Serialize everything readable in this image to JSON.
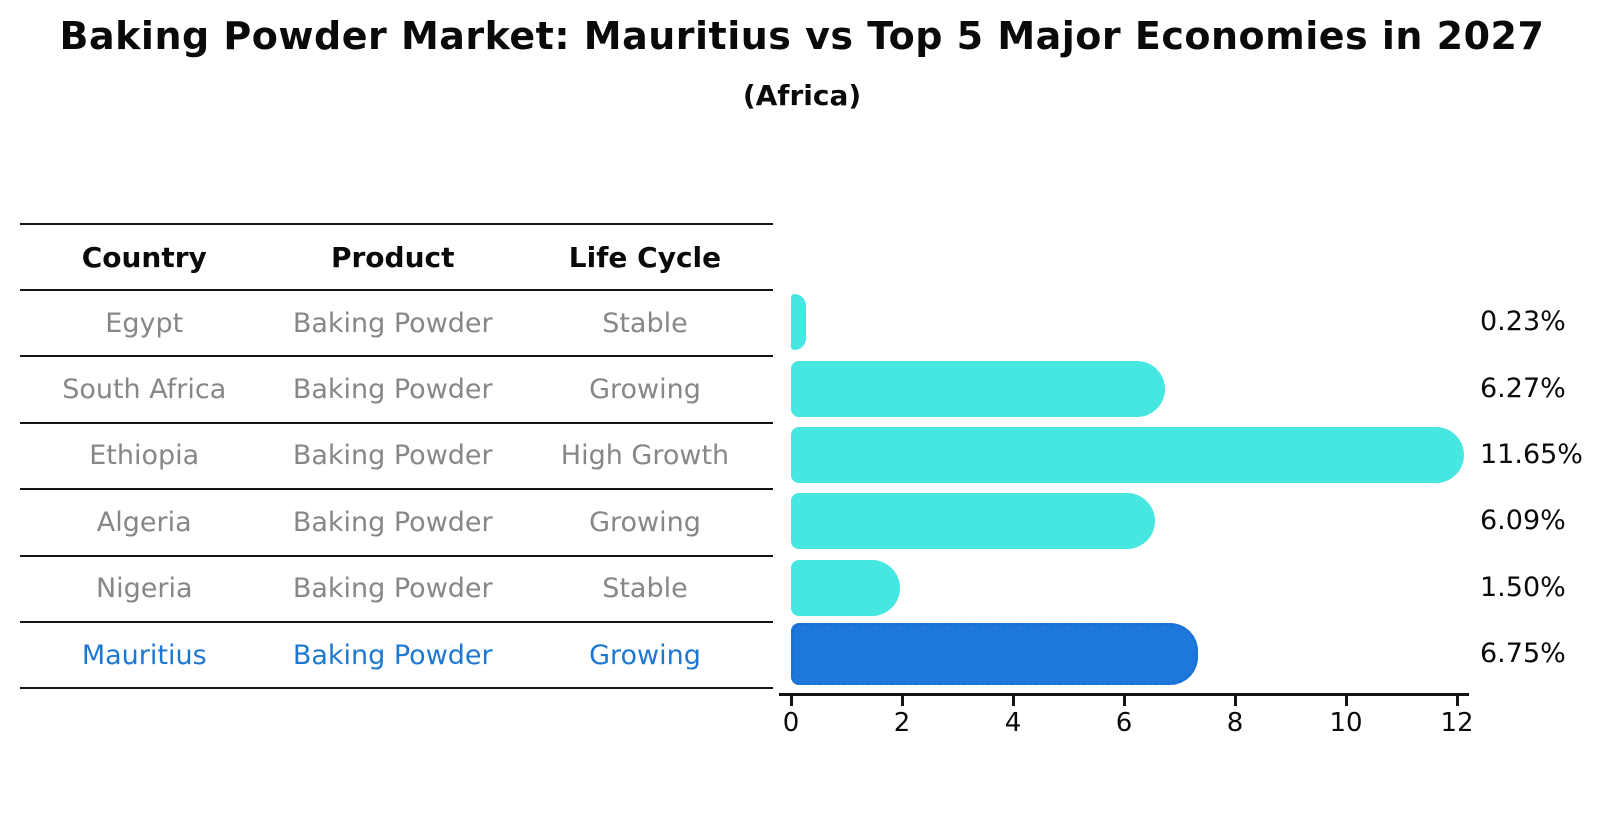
{
  "title": "Baking Powder Market: Mauritius vs Top 5 Major Economies in 2027",
  "subtitle": "(Africa)",
  "table": {
    "columns": [
      "Country",
      "Product",
      "Life Cycle"
    ],
    "rows": [
      {
        "country": "Egypt",
        "product": "Baking Powder",
        "life_cycle": "Stable",
        "highlight": false
      },
      {
        "country": "South Africa",
        "product": "Baking Powder",
        "life_cycle": "Growing",
        "highlight": false
      },
      {
        "country": "Ethiopia",
        "product": "Baking Powder",
        "life_cycle": "High Growth",
        "highlight": false
      },
      {
        "country": "Algeria",
        "product": "Baking Powder",
        "life_cycle": "Growing",
        "highlight": false
      },
      {
        "country": "Nigeria",
        "product": "Baking Powder",
        "life_cycle": "Stable",
        "highlight": false
      },
      {
        "country": "Mauritius",
        "product": "Baking Powder",
        "life_cycle": "Growing",
        "highlight": true
      }
    ]
  },
  "chart_data": {
    "type": "bar",
    "orientation": "horizontal",
    "title": "Baking Powder Market: Mauritius vs Top 5 Major Economies in 2027",
    "subtitle": "(Africa)",
    "categories": [
      "Egypt",
      "South Africa",
      "Ethiopia",
      "Algeria",
      "Nigeria",
      "Mauritius"
    ],
    "values": [
      0.23,
      6.27,
      11.65,
      6.09,
      1.5,
      6.75
    ],
    "value_labels": [
      "0.23%",
      "6.27%",
      "11.65%",
      "6.09%",
      "1.50%",
      "6.75%"
    ],
    "highlight_index": 5,
    "xlim": [
      0,
      12
    ],
    "x_ticks": [
      0,
      2,
      4,
      6,
      8,
      10,
      12
    ],
    "x_tick_labels": [
      "0",
      "2",
      "4",
      "6",
      "8",
      "10",
      "12"
    ],
    "grid": false,
    "legend": "none"
  },
  "colors": {
    "bar": "#46E6E1",
    "highlight_bar": "#1E78DB",
    "highlight_bar_border": "#1A6FD2",
    "highlight_text": "#1E78D2",
    "table_text": "#878787",
    "header_text": "#0A0A0A",
    "axis": "#141414"
  }
}
